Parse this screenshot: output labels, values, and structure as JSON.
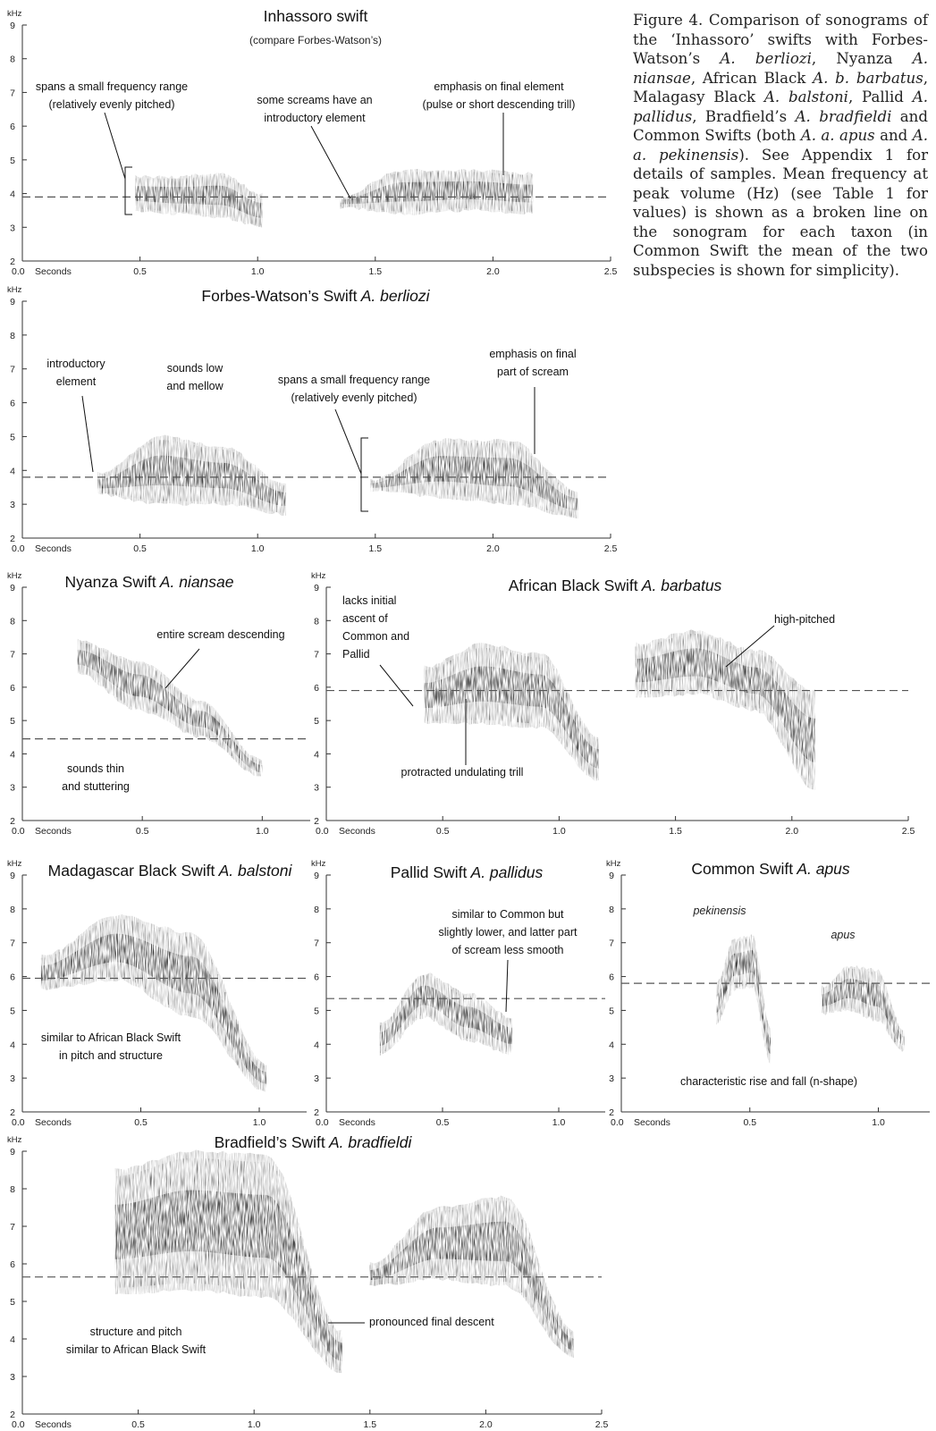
{
  "caption": {
    "lead": "Figure 4. Comparison of sonograms of the ‘Inhassoro’ swifts with Forbes-Watson’s",
    "segments": [
      {
        "t": " "
      },
      {
        "t": "A. berliozi",
        "i": true
      },
      {
        "t": ", Nyanza "
      },
      {
        "t": "A. niansae",
        "i": true
      },
      {
        "t": ", African Black "
      },
      {
        "t": "A. b. barbatus",
        "i": true
      },
      {
        "t": ", Malagasy Black "
      },
      {
        "t": "A. balstoni",
        "i": true
      },
      {
        "t": ", Pallid "
      },
      {
        "t": "A. pallidus",
        "i": true
      },
      {
        "t": ", Bradfield’s "
      },
      {
        "t": "A. bradfieldi",
        "i": true
      },
      {
        "t": " and Common Swifts (both "
      },
      {
        "t": "A. a. apus",
        "i": true
      },
      {
        "t": " and "
      },
      {
        "t": "A. a. pekinensis",
        "i": true
      },
      {
        "t": "). See Appendix 1 for details of samples. Mean frequency at peak volume (Hz) (see Table 1 for values) is shown as a broken line on the sonogram for each taxon (in Common Swift the mean of the two subspecies is shown for simplicity)."
      }
    ]
  },
  "chart_data": [
    {
      "type": "spectrogram",
      "title": "Inhassoro swift",
      "title_italic": "",
      "subtitle": "(compare Forbes-Watson’s)",
      "ylabel": "kHz",
      "xlabel": "Seconds",
      "xlim": [
        0,
        2.5
      ],
      "ylim": [
        2,
        9
      ],
      "x_ticks": [
        "0.0",
        "0.5",
        "1.0",
        "1.5",
        "2.0",
        "2.5"
      ],
      "y_ticks": [
        "2",
        "3",
        "4",
        "5",
        "6",
        "7",
        "8",
        "9"
      ],
      "mean_peak_khz": 3.9,
      "calls": [
        {
          "start": 0.48,
          "end": 1.02,
          "low": [
            3.5,
            3.4,
            3.3,
            3.0
          ],
          "high": [
            4.5,
            4.5,
            4.6,
            4.0
          ]
        },
        {
          "start": 1.35,
          "end": 2.17,
          "low": [
            3.6,
            3.4,
            3.5,
            3.4
          ],
          "high": [
            3.9,
            4.7,
            4.7,
            4.6
          ]
        }
      ],
      "annotations": [
        {
          "text": "spans a small frequency range\n(relatively evenly pitched)",
          "x": 0.47,
          "y": 3.9
        },
        {
          "text": "some screams have an\nintroductory element",
          "x": 1.39,
          "y": 3.8
        },
        {
          "text": "emphasis on final element\n(pulse or short descending trill)",
          "x": 2.07,
          "y": 4.4
        }
      ]
    },
    {
      "type": "spectrogram",
      "title": "Forbes-Watson’s Swift",
      "title_italic": "A. berliozi",
      "subtitle": "",
      "ylabel": "kHz",
      "xlabel": "Seconds",
      "xlim": [
        0,
        2.5
      ],
      "ylim": [
        2,
        9
      ],
      "x_ticks": [
        "0.0",
        "0.5",
        "1.0",
        "1.5",
        "2.0",
        "2.5"
      ],
      "y_ticks": [
        "2",
        "3",
        "4",
        "5",
        "6",
        "7",
        "8",
        "9"
      ],
      "mean_peak_khz": 3.8,
      "calls": [
        {
          "start": 0.32,
          "end": 1.12,
          "low": [
            3.3,
            3.0,
            3.0,
            2.7
          ],
          "high": [
            3.9,
            5.0,
            4.7,
            3.6
          ]
        },
        {
          "start": 1.48,
          "end": 2.36,
          "low": [
            3.4,
            3.2,
            3.0,
            2.6
          ],
          "high": [
            3.7,
            4.9,
            4.9,
            3.4
          ]
        }
      ],
      "annotations": [
        {
          "text": "introductory\nelement",
          "x": 0.34,
          "y": 3.7
        },
        {
          "text": "sounds low\nand mellow",
          "x": 0.72,
          "y": 5.9
        },
        {
          "text": "spans a small frequency range\n(relatively evenly pitched)",
          "x": 1.44,
          "y": 3.8
        },
        {
          "text": "emphasis on final\npart of scream",
          "x": 2.17,
          "y": 4.2
        }
      ]
    },
    {
      "type": "spectrogram",
      "title": "Nyanza Swift",
      "title_italic": "A. niansae",
      "subtitle": "",
      "ylabel": "kHz",
      "xlabel": "Seconds",
      "xlim": [
        0,
        1.2
      ],
      "ylim": [
        2,
        9
      ],
      "x_ticks": [
        "0.0",
        "0.5",
        "1.0"
      ],
      "y_ticks": [
        "2",
        "3",
        "4",
        "5",
        "6",
        "7",
        "8",
        "9"
      ],
      "mean_peak_khz": 4.45,
      "calls": [
        {
          "start": 0.23,
          "end": 1.0,
          "low": [
            6.4,
            5.3,
            4.5,
            3.3
          ],
          "high": [
            7.4,
            6.8,
            5.6,
            3.8
          ]
        }
      ],
      "annotations": [
        {
          "text": "entire scream descending",
          "x": 0.6,
          "y": 5.8
        },
        {
          "text": "sounds thin\nand stuttering",
          "x": 0.35,
          "y": 2.9
        }
      ]
    },
    {
      "type": "spectrogram",
      "title": "African Black Swift",
      "title_italic": "A. barbatus",
      "subtitle": "",
      "ylabel": "kHz",
      "xlabel": "Seconds",
      "xlim": [
        0,
        2.5
      ],
      "ylim": [
        2,
        9
      ],
      "x_ticks": [
        "0.0",
        "0.5",
        "1.0",
        "1.5",
        "2.0",
        "2.5"
      ],
      "y_ticks": [
        "2",
        "3",
        "4",
        "5",
        "6",
        "7",
        "8",
        "9"
      ],
      "mean_peak_khz": 5.9,
      "calls": [
        {
          "start": 0.42,
          "end": 1.17,
          "low": [
            4.9,
            4.9,
            4.8,
            3.2
          ],
          "high": [
            6.6,
            7.3,
            7.0,
            4.5
          ]
        },
        {
          "start": 1.33,
          "end": 2.1,
          "low": [
            5.7,
            5.8,
            5.3,
            2.9
          ],
          "high": [
            7.3,
            7.7,
            7.1,
            5.9
          ]
        }
      ],
      "annotations": [
        {
          "text": "lacks initial\nascent of\nCommon and\nPallid",
          "x": 0.42,
          "y": 5.8
        },
        {
          "text": "protracted undulating trill",
          "x": 0.63,
          "y": 5.7
        },
        {
          "text": "high-pitched",
          "x": 1.73,
          "y": 6.3
        }
      ]
    },
    {
      "type": "spectrogram",
      "title": "Madagascar Black Swift",
      "title_italic": "A. balstoni",
      "subtitle": "",
      "ylabel": "kHz",
      "xlabel": "Seconds",
      "xlim": [
        0,
        1.2
      ],
      "ylim": [
        2,
        9
      ],
      "x_ticks": [
        "0.0",
        "0.5",
        "1.0"
      ],
      "y_ticks": [
        "2",
        "3",
        "4",
        "5",
        "6",
        "7",
        "8",
        "9"
      ],
      "mean_peak_khz": 5.95,
      "calls": [
        {
          "start": 0.08,
          "end": 1.03,
          "low": [
            5.6,
            5.9,
            4.8,
            2.6
          ],
          "high": [
            6.6,
            7.8,
            7.3,
            3.4
          ]
        }
      ],
      "annotations": [
        {
          "text": "similar to African Black Swift\nin pitch and structure",
          "x": 0.42,
          "y": 3.8
        }
      ]
    },
    {
      "type": "spectrogram",
      "title": "Pallid Swift",
      "title_italic": "A. pallidus",
      "subtitle": "",
      "ylabel": "kHz",
      "xlabel": "Seconds",
      "xlim": [
        0,
        1.2
      ],
      "ylim": [
        2,
        9
      ],
      "x_ticks": [
        "0.0",
        "0.5",
        "1.0"
      ],
      "y_ticks": [
        "2",
        "3",
        "4",
        "5",
        "6",
        "7",
        "8",
        "9"
      ],
      "mean_peak_khz": 5.35,
      "calls": [
        {
          "start": 0.23,
          "end": 0.8,
          "low": [
            3.7,
            4.8,
            4.1,
            3.7
          ],
          "high": [
            4.6,
            6.1,
            5.5,
            4.8
          ]
        }
      ],
      "annotations": [
        {
          "text": "similar to Common but\nslightly lower, and latter part\nof scream less smooth",
          "x": 0.77,
          "y": 5.0
        }
      ]
    },
    {
      "type": "spectrogram",
      "title": "Common Swift",
      "title_italic": "A. apus",
      "subtitle": "",
      "ylabel": "kHz",
      "xlabel": "Seconds",
      "xlim": [
        0,
        1.2
      ],
      "ylim": [
        2,
        9
      ],
      "x_ticks": [
        "0.0",
        "0.5",
        "1.0"
      ],
      "y_ticks": [
        "2",
        "3",
        "4",
        "5",
        "6",
        "7",
        "8",
        "9"
      ],
      "mean_peak_khz": 5.8,
      "calls": [
        {
          "start": 0.37,
          "end": 0.58,
          "low": [
            4.6,
            5.6,
            5.7,
            3.4
          ],
          "high": [
            5.8,
            7.1,
            7.2,
            4.5
          ],
          "label": "pekinensis"
        },
        {
          "start": 0.78,
          "end": 1.1,
          "low": [
            4.9,
            5.0,
            4.7,
            3.8
          ],
          "high": [
            5.7,
            6.3,
            6.2,
            4.4
          ],
          "label": "apus"
        }
      ],
      "annotations": [
        {
          "text": "characteristic rise and fall (n-shape)",
          "x": 0.65,
          "y": 3.0
        }
      ]
    },
    {
      "type": "spectrogram",
      "title": "Bradfield’s Swift",
      "title_italic": "A. bradfieldi",
      "subtitle": "",
      "ylabel": "kHz",
      "xlabel": "Seconds",
      "xlim": [
        0,
        2.5
      ],
      "ylim": [
        2,
        9
      ],
      "x_ticks": [
        "0.0",
        "0.5",
        "1.0",
        "1.5",
        "2.0",
        "2.5"
      ],
      "y_ticks": [
        "2",
        "3",
        "4",
        "5",
        "6",
        "7",
        "8",
        "9"
      ],
      "mean_peak_khz": 5.65,
      "calls": [
        {
          "start": 0.4,
          "end": 1.38,
          "low": [
            5.2,
            5.3,
            5.1,
            3.1
          ],
          "high": [
            8.5,
            9.0,
            8.9,
            4.2
          ]
        },
        {
          "start": 1.5,
          "end": 2.38,
          "low": [
            5.4,
            5.6,
            5.4,
            3.5
          ],
          "high": [
            6.0,
            7.5,
            7.8,
            4.2
          ]
        }
      ],
      "annotations": [
        {
          "text": "structure and pitch\nsimilar to African Black Swift",
          "x": 0.45,
          "y": 3.0
        },
        {
          "text": "pronounced final descent",
          "x": 1.43,
          "y": 3.8
        }
      ]
    }
  ]
}
